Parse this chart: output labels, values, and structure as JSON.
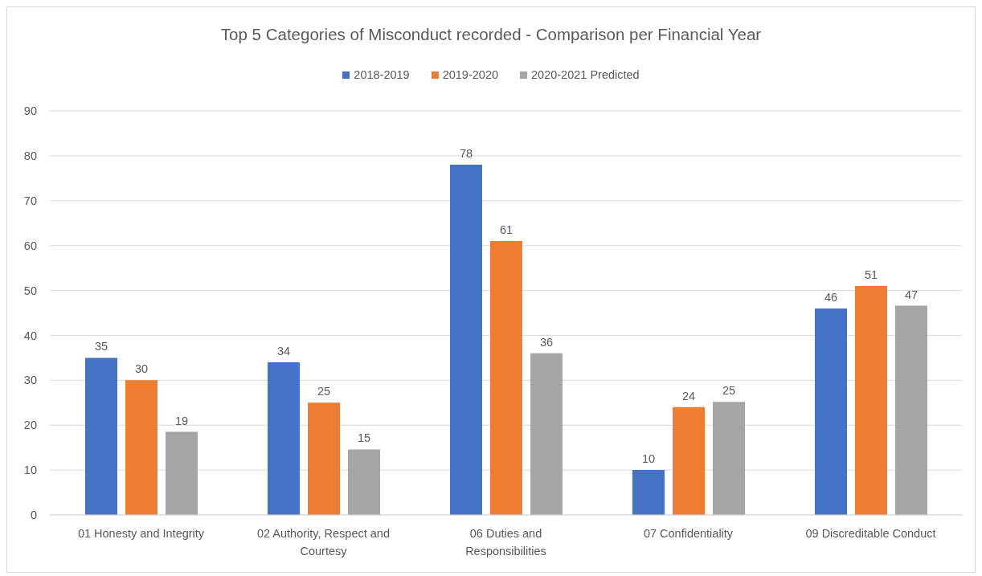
{
  "chart_data": {
    "type": "bar",
    "title": "Top 5 Categories of Misconduct recorded - Comparison per Financial Year",
    "categories": [
      "01 Honesty and Integrity",
      "02 Authority, Respect and Courtesy",
      "06 Duties and Responsibilities",
      "07 Confidentiality",
      "09 Discreditable Conduct"
    ],
    "series": [
      {
        "name": "2018-2019",
        "color": "#4472c4",
        "values": [
          35,
          34,
          78,
          10,
          46
        ],
        "value_labels": [
          "35",
          "34",
          "78",
          "10",
          "46"
        ]
      },
      {
        "name": "2019-2020",
        "color": "#ed7d31",
        "values": [
          30,
          25,
          61,
          24,
          51
        ],
        "value_labels": [
          "30",
          "25",
          "61",
          "24",
          "51"
        ]
      },
      {
        "name": "2020-2021 Predicted",
        "color": "#a5a5a5",
        "values": [
          18.5,
          14.6,
          36,
          25.2,
          46.6
        ],
        "value_labels": [
          "19",
          "15",
          "36",
          "25",
          "47"
        ]
      }
    ],
    "ylim": [
      0,
      90
    ],
    "yticks": [
      0,
      10,
      20,
      30,
      40,
      50,
      60,
      70,
      80,
      90
    ],
    "grid": "y",
    "legend": "top"
  }
}
